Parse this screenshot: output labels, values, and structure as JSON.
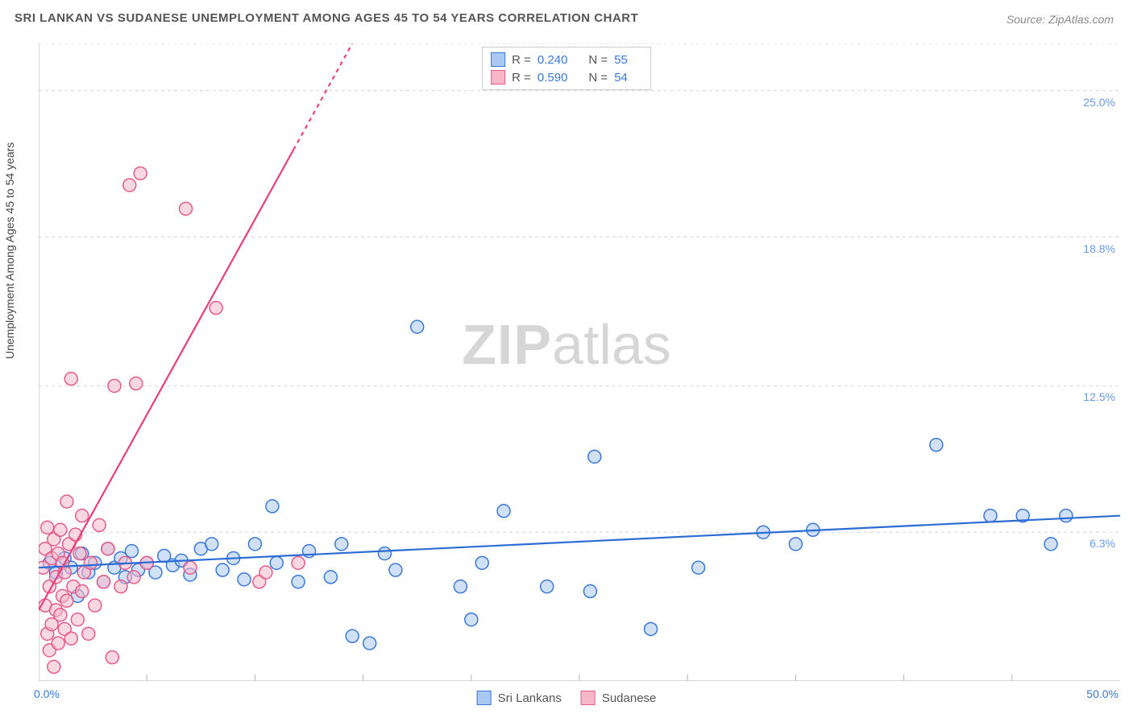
{
  "title": "SRI LANKAN VS SUDANESE UNEMPLOYMENT AMONG AGES 45 TO 54 YEARS CORRELATION CHART",
  "source_label": "Source: ",
  "source_name": "ZipAtlas.com",
  "ylabel": "Unemployment Among Ages 45 to 54 years",
  "watermark_bold": "ZIP",
  "watermark_light": "atlas",
  "chart": {
    "type": "scatter",
    "background_color": "#ffffff",
    "grid_color": "#d4d4d4",
    "grid_dash": "4,4",
    "axis_color": "#b0b0b0",
    "tick_color": "#b0b0b0",
    "xlim": [
      0,
      50
    ],
    "ylim": [
      0,
      27
    ],
    "xtick_step": 5,
    "y_gridlines": [
      6.3,
      12.5,
      18.8,
      25.0,
      27.0
    ],
    "y_grid_labels": [
      "6.3%",
      "12.5%",
      "18.8%",
      "25.0%"
    ],
    "x_min_label": "0.0%",
    "x_max_label": "50.0%",
    "label_color": "#3a78d8",
    "label_fontsize": 14,
    "marker_radius": 8,
    "marker_stroke_width": 1.5,
    "trend_line_width": 2.2,
    "series": [
      {
        "name": "Sri Lankans",
        "fill": "#a9c9f0",
        "stroke": "#3a78d8",
        "fill_opacity": 0.55,
        "r_label": "R = ",
        "r_value": "0.240",
        "n_label": "N = ",
        "n_value": "55",
        "trend": {
          "x1": 0,
          "y1": 4.8,
          "x2": 50,
          "y2": 7.0,
          "color": "#2b6cd4"
        },
        "points": [
          [
            0.5,
            5.0
          ],
          [
            0.8,
            4.6
          ],
          [
            1.2,
            5.2
          ],
          [
            1.5,
            4.8
          ],
          [
            1.8,
            3.6
          ],
          [
            2.0,
            5.4
          ],
          [
            2.3,
            4.6
          ],
          [
            2.6,
            5.0
          ],
          [
            3.0,
            4.2
          ],
          [
            3.2,
            5.6
          ],
          [
            3.5,
            4.8
          ],
          [
            3.8,
            5.2
          ],
          [
            4.0,
            4.4
          ],
          [
            4.3,
            5.5
          ],
          [
            4.6,
            4.7
          ],
          [
            5.0,
            5.0
          ],
          [
            5.4,
            4.6
          ],
          [
            5.8,
            5.3
          ],
          [
            6.2,
            4.9
          ],
          [
            6.6,
            5.1
          ],
          [
            7.0,
            4.5
          ],
          [
            7.5,
            5.6
          ],
          [
            8.0,
            5.8
          ],
          [
            8.5,
            4.7
          ],
          [
            9.0,
            5.2
          ],
          [
            9.5,
            4.3
          ],
          [
            10.0,
            5.8
          ],
          [
            10.8,
            7.4
          ],
          [
            11.0,
            5.0
          ],
          [
            12.0,
            4.2
          ],
          [
            12.5,
            5.5
          ],
          [
            13.5,
            4.4
          ],
          [
            14.0,
            5.8
          ],
          [
            14.5,
            1.9
          ],
          [
            15.3,
            1.6
          ],
          [
            16.0,
            5.4
          ],
          [
            16.5,
            4.7
          ],
          [
            17.5,
            15.0
          ],
          [
            19.5,
            4.0
          ],
          [
            20.0,
            2.6
          ],
          [
            20.5,
            5.0
          ],
          [
            21.5,
            7.2
          ],
          [
            23.5,
            4.0
          ],
          [
            25.5,
            3.8
          ],
          [
            25.7,
            9.5
          ],
          [
            28.3,
            2.2
          ],
          [
            30.5,
            4.8
          ],
          [
            33.5,
            6.3
          ],
          [
            35.0,
            5.8
          ],
          [
            35.8,
            6.4
          ],
          [
            41.5,
            10.0
          ],
          [
            44.0,
            7.0
          ],
          [
            45.5,
            7.0
          ],
          [
            46.8,
            5.8
          ],
          [
            47.5,
            7.0
          ]
        ]
      },
      {
        "name": "Sudanese",
        "fill": "#f6b8c8",
        "stroke": "#e55a8a",
        "fill_opacity": 0.55,
        "r_label": "R = ",
        "r_value": "0.590",
        "n_label": "N = ",
        "n_value": "54",
        "trend": {
          "x1": 0,
          "y1": 3.0,
          "x2": 14.5,
          "y2": 27.0,
          "color": "#e83e7c"
        },
        "trend_dash_after": 22.5,
        "points": [
          [
            0.2,
            4.8
          ],
          [
            0.3,
            3.2
          ],
          [
            0.3,
            5.6
          ],
          [
            0.4,
            2.0
          ],
          [
            0.4,
            6.5
          ],
          [
            0.5,
            1.3
          ],
          [
            0.5,
            4.0
          ],
          [
            0.6,
            2.4
          ],
          [
            0.6,
            5.2
          ],
          [
            0.7,
            0.6
          ],
          [
            0.7,
            6.0
          ],
          [
            0.8,
            3.0
          ],
          [
            0.8,
            4.4
          ],
          [
            0.9,
            1.6
          ],
          [
            0.9,
            5.4
          ],
          [
            1.0,
            2.8
          ],
          [
            1.0,
            6.4
          ],
          [
            1.1,
            3.6
          ],
          [
            1.1,
            5.0
          ],
          [
            1.2,
            2.2
          ],
          [
            1.2,
            4.6
          ],
          [
            1.3,
            7.6
          ],
          [
            1.3,
            3.4
          ],
          [
            1.4,
            5.8
          ],
          [
            1.5,
            1.8
          ],
          [
            1.5,
            12.8
          ],
          [
            1.6,
            4.0
          ],
          [
            1.7,
            6.2
          ],
          [
            1.8,
            2.6
          ],
          [
            1.9,
            5.4
          ],
          [
            2.0,
            3.8
          ],
          [
            2.0,
            7.0
          ],
          [
            2.1,
            4.6
          ],
          [
            2.3,
            2.0
          ],
          [
            2.4,
            5.0
          ],
          [
            2.6,
            3.2
          ],
          [
            2.8,
            6.6
          ],
          [
            3.0,
            4.2
          ],
          [
            3.2,
            5.6
          ],
          [
            3.4,
            1.0
          ],
          [
            3.5,
            12.5
          ],
          [
            3.8,
            4.0
          ],
          [
            4.0,
            5.0
          ],
          [
            4.2,
            21.0
          ],
          [
            4.4,
            4.4
          ],
          [
            4.5,
            12.6
          ],
          [
            4.7,
            21.5
          ],
          [
            5.0,
            5.0
          ],
          [
            6.8,
            20.0
          ],
          [
            7.0,
            4.8
          ],
          [
            8.2,
            15.8
          ],
          [
            10.2,
            4.2
          ],
          [
            10.5,
            4.6
          ],
          [
            12.0,
            5.0
          ]
        ]
      }
    ]
  }
}
